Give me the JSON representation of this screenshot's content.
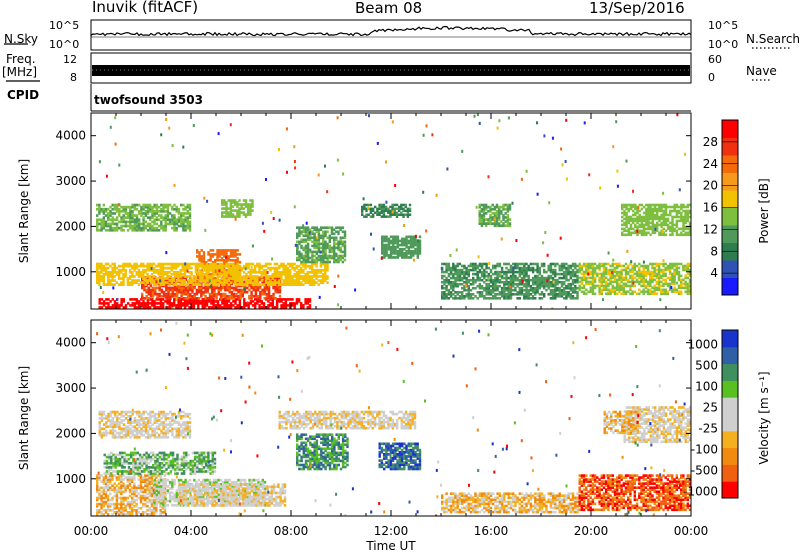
{
  "header": {
    "station": "Inuvik (fitACF)",
    "beam": "Beam 08",
    "date": "13/Sep/2016"
  },
  "noise_panel": {
    "left_label": "N.Sky",
    "left_ticks": [
      "10^5",
      "10^0"
    ],
    "right_ticks": [
      "10^5",
      "10^0"
    ],
    "right_label": "N.Search"
  },
  "freq_panel": {
    "left_label_1": "Freq.",
    "left_label_2": "[MHz]",
    "left_ticks": [
      "12",
      "8"
    ],
    "right_ticks": [
      "60",
      "0"
    ],
    "right_label": "Nave"
  },
  "cpid_panel": {
    "label": "CPID",
    "value": "twofsound 3503"
  },
  "colors": {
    "power_scale": [
      "#1a1aff",
      "#2f52b3",
      "#2e7d4f",
      "#4f9a5a",
      "#7fbf3f",
      "#f2c200",
      "#f59a1a",
      "#f56a0a",
      "#f03010",
      "#ff0000"
    ],
    "velocity_scale": [
      "#ff0000",
      "#f06010",
      "#f08a10",
      "#f5b020",
      "#cfcfcf",
      "#cfcfcf",
      "#58c020",
      "#3f8f5f",
      "#2f5fa5",
      "#1a33cc"
    ]
  },
  "chart_data": [
    {
      "type": "heatmap",
      "name": "power",
      "ylabel": "Slant Range [km]",
      "yticks": [
        "1000",
        "2000",
        "3000",
        "4000"
      ],
      "ylim": [
        180,
        4500
      ],
      "xlim": [
        "00:00",
        "24:00"
      ],
      "colorbar": {
        "label": "Power [dB]",
        "range": [
          0,
          32
        ],
        "ticks": [
          "4",
          "8",
          "12",
          "16",
          "20",
          "24",
          "28"
        ]
      },
      "regions": [
        {
          "t0": 0.3,
          "t1": 8.8,
          "r0": 200,
          "r1": 420,
          "v": 30
        },
        {
          "t0": 2.0,
          "t1": 7.6,
          "r0": 400,
          "r1": 900,
          "v": 26
        },
        {
          "t0": 4.2,
          "t1": 6.0,
          "r0": 800,
          "r1": 1500,
          "v": 24
        },
        {
          "t0": 0.2,
          "t1": 9.5,
          "r0": 700,
          "r1": 1200,
          "v": 18
        },
        {
          "t0": 0.2,
          "t1": 4.0,
          "r0": 1900,
          "r1": 2500,
          "v": 13
        },
        {
          "t0": 5.2,
          "t1": 6.5,
          "r0": 2200,
          "r1": 2600,
          "v": 14
        },
        {
          "t0": 8.2,
          "t1": 10.2,
          "r0": 1200,
          "r1": 2000,
          "v": 12
        },
        {
          "t0": 11.6,
          "t1": 13.2,
          "r0": 1300,
          "r1": 1800,
          "v": 11
        },
        {
          "t0": 10.8,
          "t1": 12.8,
          "r0": 2200,
          "r1": 2500,
          "v": 9
        },
        {
          "t0": 14.0,
          "t1": 19.5,
          "r0": 400,
          "r1": 1200,
          "v": 10
        },
        {
          "t0": 15.5,
          "t1": 16.8,
          "r0": 2000,
          "r1": 2500,
          "v": 12
        },
        {
          "t0": 19.5,
          "t1": 24.0,
          "r0": 500,
          "r1": 1200,
          "v": 15
        },
        {
          "t0": 21.2,
          "t1": 24.0,
          "r0": 1800,
          "r1": 2500,
          "v": 14
        }
      ]
    },
    {
      "type": "heatmap",
      "name": "velocity",
      "ylabel": "Slant Range [km]",
      "yticks": [
        "1000",
        "2000",
        "3000",
        "4000"
      ],
      "xlabel": "Time UT",
      "xticks": [
        "00:00",
        "04:00",
        "08:00",
        "12:00",
        "16:00",
        "20:00",
        "00:00"
      ],
      "ylim": [
        180,
        4500
      ],
      "colorbar": {
        "label": "Velocity [m s⁻¹]",
        "ticks": [
          "1000",
          "500",
          "100",
          "25",
          "-25",
          "-100",
          "-500",
          "-1000"
        ]
      },
      "regions": [
        {
          "t0": 0.2,
          "t1": 3.0,
          "r0": 200,
          "r1": 1100,
          "v": 3
        },
        {
          "t0": 2.5,
          "t1": 7.0,
          "r0": 400,
          "r1": 1000,
          "v": 5
        },
        {
          "t0": 3.5,
          "t1": 7.8,
          "r0": 400,
          "r1": 900,
          "v": 4
        },
        {
          "t0": 0.5,
          "t1": 5.0,
          "r0": 1100,
          "r1": 1600,
          "v": 6
        },
        {
          "t0": 8.2,
          "t1": 10.3,
          "r0": 1200,
          "r1": 2000,
          "v": 7
        },
        {
          "t0": 11.5,
          "t1": 13.2,
          "r0": 1200,
          "r1": 1800,
          "v": 8
        },
        {
          "t0": 0.3,
          "t1": 4.0,
          "r0": 1900,
          "r1": 2500,
          "v": 4
        },
        {
          "t0": 7.5,
          "t1": 13.0,
          "r0": 2100,
          "r1": 2500,
          "v": 4
        },
        {
          "t0": 14.0,
          "t1": 19.5,
          "r0": 250,
          "r1": 700,
          "v": 3
        },
        {
          "t0": 19.5,
          "t1": 24.0,
          "r0": 300,
          "r1": 1100,
          "v": 1
        },
        {
          "t0": 21.3,
          "t1": 24.0,
          "r0": 1800,
          "r1": 2600,
          "v": 4
        },
        {
          "t0": 20.5,
          "t1": 22.0,
          "r0": 2000,
          "r1": 2500,
          "v": 3
        }
      ]
    }
  ]
}
